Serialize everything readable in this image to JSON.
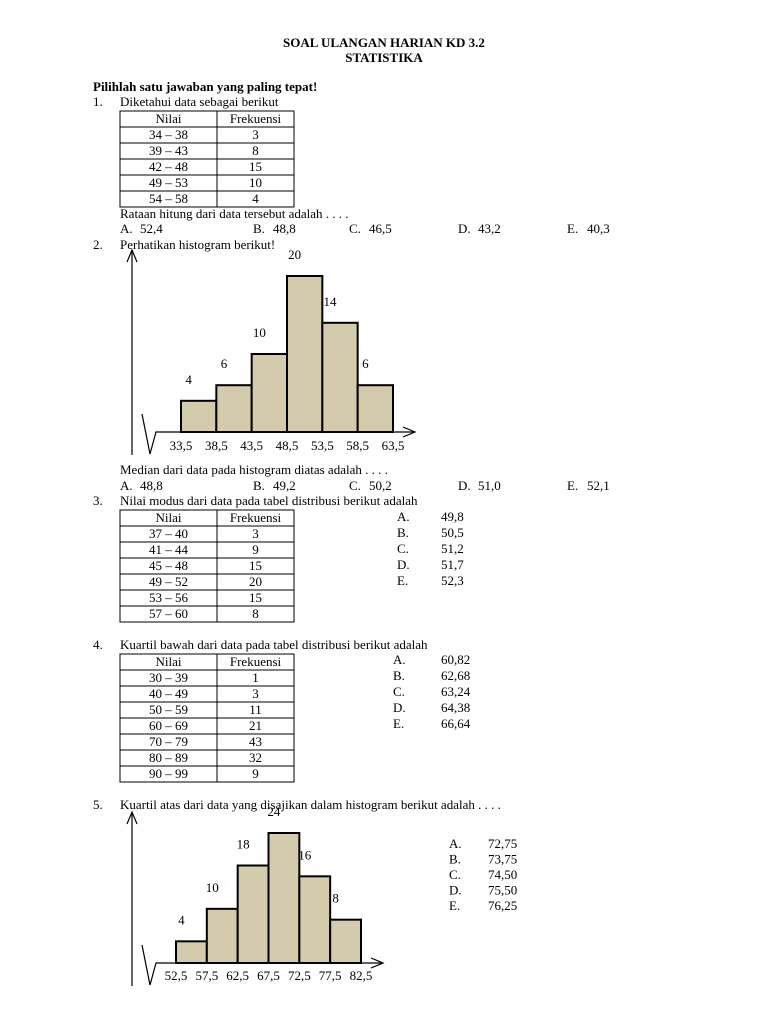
{
  "header": {
    "title": "SOAL ULANGAN HARIAN KD 3.2",
    "subtitle": "STATISTIKA"
  },
  "instruction": "Pilihlah satu jawaban yang paling tepat!",
  "questions": [
    {
      "number": "1.",
      "text": "Diketahui data sebagai berikut",
      "table": {
        "header": [
          "Nilai",
          "Frekuensi"
        ],
        "rows": [
          [
            "34 – 38",
            "3"
          ],
          [
            "39 – 43",
            "8"
          ],
          [
            "42 – 48",
            "15"
          ],
          [
            "49 – 53",
            "10"
          ],
          [
            "54 – 58",
            "4"
          ]
        ]
      },
      "question": "Rataan hitung dari data tersebut adalah  . . . .",
      "options": [
        {
          "letter": "A.",
          "text": "52,4"
        },
        {
          "letter": "B.",
          "text": "48,8"
        },
        {
          "letter": "C.",
          "text": "46,5"
        },
        {
          "letter": "D.",
          "text": "43,2"
        },
        {
          "letter": "E.",
          "text": "40,3"
        }
      ]
    },
    {
      "number": "2.",
      "text": "Perhatikan histogram berikut!",
      "histogram": {
        "type": "histogram",
        "bins": [
          {
            "value": 33.5,
            "label": "33,5"
          },
          {
            "value": 38.5,
            "label": "38,5"
          },
          {
            "value": 43.5,
            "label": "43,5"
          },
          {
            "value": 48.5,
            "label": "48,5"
          },
          {
            "value": 53.5,
            "label": "53,5"
          },
          {
            "value": 58.5,
            "label": "58,5"
          },
          {
            "value": 63.5,
            "label": "63,5"
          }
        ],
        "values": [
          4,
          6,
          10,
          20,
          14,
          6
        ],
        "color": "#d3cbab"
      },
      "question": "Median dari data pada histogram diatas adalah . . . .",
      "options": [
        {
          "letter": "A.",
          "text": "48,8"
        },
        {
          "letter": "B.",
          "text": "49,2"
        },
        {
          "letter": "C.",
          "text": "50,2"
        },
        {
          "letter": "D.",
          "text": "51,0"
        },
        {
          "letter": "E.",
          "text": "52,1"
        }
      ]
    },
    {
      "number": "3.",
      "text": "Nilai modus dari data pada tabel distribusi berikut adalah",
      "table": {
        "header": [
          "Nilai",
          "Frekuensi"
        ],
        "rows": [
          [
            "37 – 40",
            "3"
          ],
          [
            "41 – 44",
            "9"
          ],
          [
            "45 – 48",
            "15"
          ],
          [
            "49 – 52",
            "20"
          ],
          [
            "53 – 56",
            "15"
          ],
          [
            "57 – 60",
            "8"
          ]
        ]
      },
      "options": [
        {
          "letter": "A.",
          "text": "49,8"
        },
        {
          "letter": "B.",
          "text": "50,5"
        },
        {
          "letter": "C.",
          "text": "51,2"
        },
        {
          "letter": "D.",
          "text": "51,7"
        },
        {
          "letter": "E.",
          "text": "52,3"
        }
      ]
    },
    {
      "number": "4.",
      "text": "Kuartil bawah dari data pada tabel distribusi berikut adalah",
      "table": {
        "header": [
          "Nilai",
          "Frekuensi"
        ],
        "rows": [
          [
            "30 – 39",
            "1"
          ],
          [
            "40 – 49",
            "3"
          ],
          [
            "50 – 59",
            "11"
          ],
          [
            "60 – 69",
            "21"
          ],
          [
            "70 – 79",
            "43"
          ],
          [
            "80 – 89",
            "32"
          ],
          [
            "90 – 99",
            "9"
          ]
        ]
      },
      "options": [
        {
          "letter": "A.",
          "text": "60,82"
        },
        {
          "letter": "B.",
          "text": "62,68"
        },
        {
          "letter": "C.",
          "text": "63,24"
        },
        {
          "letter": "D.",
          "text": "64,38"
        },
        {
          "letter": "E.",
          "text": "66,64"
        }
      ]
    },
    {
      "number": "5.",
      "text": "Kuartil atas dari data yang disajikan dalam histogram berikut adalah  . . . .",
      "histogram": {
        "type": "histogram",
        "bins": [
          {
            "value": 52.5,
            "label": "52,5"
          },
          {
            "value": 57.5,
            "label": "57,5"
          },
          {
            "value": 62.5,
            "label": "62,5"
          },
          {
            "value": 67.5,
            "label": "67,5"
          },
          {
            "value": 72.5,
            "label": "72,5"
          },
          {
            "value": 77.5,
            "label": "77,5"
          },
          {
            "value": 82.5,
            "label": "82,5"
          }
        ],
        "values": [
          4,
          10,
          18,
          24,
          16,
          8
        ],
        "color": "#d3cbab"
      },
      "options": [
        {
          "letter": "A.",
          "text": "72,75"
        },
        {
          "letter": "B.",
          "text": "73,75"
        },
        {
          "letter": "C.",
          "text": "74,50"
        },
        {
          "letter": "D.",
          "text": "75,50"
        },
        {
          "letter": "E.",
          "text": "76,25"
        }
      ]
    }
  ]
}
